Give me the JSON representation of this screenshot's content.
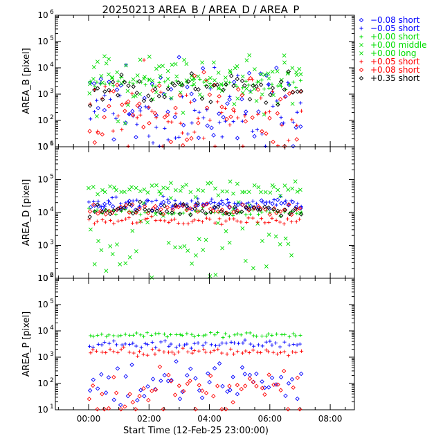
{
  "chart_data": {
    "type": "scatter",
    "title": "20250213 AREA_B / AREA_D / AREA_P",
    "xlabel": "Start Time (12-Feb-25 23:00:00)",
    "x_tick_labels": [
      "00:00",
      "02:00",
      "04:00",
      "06:00",
      "08:00"
    ],
    "x_ticks_hours": [
      1,
      3,
      5,
      7,
      9
    ],
    "xlim_hours": [
      -0.1,
      9.8
    ],
    "y_scale": "log",
    "y_tick_exponents": [
      "1",
      "2",
      "3",
      "4",
      "5",
      "6"
    ],
    "legend_position": "top-right",
    "legend": [
      {
        "label": "−0.08 short",
        "marker": "diamond",
        "color": "#0000ff"
      },
      {
        "label": "−0.05 short",
        "marker": "plus",
        "color": "#0000ff"
      },
      {
        "label": "+0.00 short",
        "marker": "plus",
        "color": "#00dd00"
      },
      {
        "label": "+0.00 middle",
        "marker": "cross",
        "color": "#00dd00"
      },
      {
        "label": "+0.00 long",
        "marker": "cross",
        "color": "#00dd00"
      },
      {
        "label": "+0.05 short",
        "marker": "plus",
        "color": "#ff0000"
      },
      {
        "label": "+0.08 short",
        "marker": "diamond",
        "color": "#ff0000"
      },
      {
        "label": "+0.35 short",
        "marker": "diamond",
        "color": "#000000"
      }
    ],
    "panels": [
      {
        "ylabel": "AREA_B [pixel]",
        "ylim_log10": [
          1,
          6
        ],
        "series": [
          {
            "name": "−0.08 short",
            "marker": "diamond",
            "color": "#0000ff",
            "x_range_hours": [
              1.0,
              8.1
            ],
            "log10_y_typical": 2.6,
            "log10_y_spread": 0.8
          },
          {
            "name": "−0.05 short",
            "marker": "plus",
            "color": "#0000ff",
            "x_range_hours": [
              1.0,
              8.1
            ],
            "log10_y_typical": 2.3,
            "log10_y_spread": 0.8
          },
          {
            "name": "+0.00 short",
            "marker": "plus",
            "color": "#00dd00",
            "x_range_hours": [
              1.0,
              8.1
            ],
            "log10_y_typical": 3.4,
            "log10_y_spread": 0.1
          },
          {
            "name": "+0.00 middle",
            "marker": "cross",
            "color": "#00dd00",
            "x_range_hours": [
              1.0,
              8.1
            ],
            "log10_y_typical": 3.2,
            "log10_y_spread": 0.6
          },
          {
            "name": "+0.00 long",
            "marker": "cross",
            "color": "#00dd00",
            "x_range_hours": [
              1.0,
              8.1
            ],
            "log10_y_typical": 3.9,
            "log10_y_spread": 0.35
          },
          {
            "name": "+0.05 short",
            "marker": "plus",
            "color": "#ff0000",
            "x_range_hours": [
              1.0,
              8.1
            ],
            "log10_y_typical": 2.2,
            "log10_y_spread": 0.8
          },
          {
            "name": "+0.08 short",
            "marker": "diamond",
            "color": "#ff0000",
            "x_range_hours": [
              1.0,
              8.1
            ],
            "log10_y_typical": 2.4,
            "log10_y_spread": 0.8
          },
          {
            "name": "+0.35 short",
            "marker": "diamond",
            "color": "#000000",
            "x_range_hours": [
              1.0,
              8.1
            ],
            "log10_y_typical": 3.2,
            "log10_y_spread": 0.3
          }
        ]
      },
      {
        "ylabel": "AREA_D [pixel]",
        "ylim_log10": [
          2,
          6
        ],
        "series": [
          {
            "name": "−0.08 short",
            "marker": "diamond",
            "color": "#0000ff",
            "x_range_hours": [
              1.0,
              8.1
            ],
            "log10_y_typical": 4.2,
            "log10_y_spread": 0.08
          },
          {
            "name": "−0.05 short",
            "marker": "plus",
            "color": "#0000ff",
            "x_range_hours": [
              1.0,
              8.1
            ],
            "log10_y_typical": 4.3,
            "log10_y_spread": 0.08
          },
          {
            "name": "+0.00 short",
            "marker": "plus",
            "color": "#00dd00",
            "x_range_hours": [
              1.0,
              8.1
            ],
            "log10_y_typical": 4.0,
            "log10_y_spread": 0.06
          },
          {
            "name": "+0.00 middle",
            "marker": "cross",
            "color": "#00dd00",
            "x_range_hours": [
              1.0,
              8.1
            ],
            "log10_y_typical": 3.3,
            "log10_y_spread": 0.7
          },
          {
            "name": "+0.00 long",
            "marker": "cross",
            "color": "#00dd00",
            "x_range_hours": [
              1.0,
              8.1
            ],
            "log10_y_typical": 4.7,
            "log10_y_spread": 0.1
          },
          {
            "name": "+0.05 short",
            "marker": "plus",
            "color": "#ff0000",
            "x_range_hours": [
              1.0,
              8.1
            ],
            "log10_y_typical": 3.75,
            "log10_y_spread": 0.06
          },
          {
            "name": "+0.08 short",
            "marker": "diamond",
            "color": "#ff0000",
            "x_range_hours": [
              1.0,
              8.1
            ],
            "log10_y_typical": 4.1,
            "log10_y_spread": 0.08
          },
          {
            "name": "+0.35 short",
            "marker": "diamond",
            "color": "#000000",
            "x_range_hours": [
              1.0,
              8.1
            ],
            "log10_y_typical": 4.1,
            "log10_y_spread": 0.1
          }
        ]
      },
      {
        "ylabel": "AREA_P [pixel]",
        "ylim_log10": [
          1,
          6
        ],
        "series": [
          {
            "name": "−0.08 short",
            "marker": "diamond",
            "color": "#0000ff",
            "x_range_hours": [
              1.0,
              8.1
            ],
            "log10_y_typical": 2.0,
            "log10_y_spread": 0.5
          },
          {
            "name": "−0.05 short",
            "marker": "plus",
            "color": "#0000ff",
            "x_range_hours": [
              1.0,
              8.1
            ],
            "log10_y_typical": 3.5,
            "log10_y_spread": 0.08
          },
          {
            "name": "+0.00 short",
            "marker": "plus",
            "color": "#00dd00",
            "x_range_hours": [
              1.0,
              8.1
            ],
            "log10_y_typical": 3.85,
            "log10_y_spread": 0.05
          },
          {
            "name": "+0.05 short",
            "marker": "plus",
            "color": "#ff0000",
            "x_range_hours": [
              1.0,
              8.1
            ],
            "log10_y_typical": 3.2,
            "log10_y_spread": 0.08
          },
          {
            "name": "+0.08 short",
            "marker": "diamond",
            "color": "#ff0000",
            "x_range_hours": [
              1.0,
              8.1
            ],
            "log10_y_typical": 1.6,
            "log10_y_spread": 0.5
          }
        ]
      }
    ]
  }
}
